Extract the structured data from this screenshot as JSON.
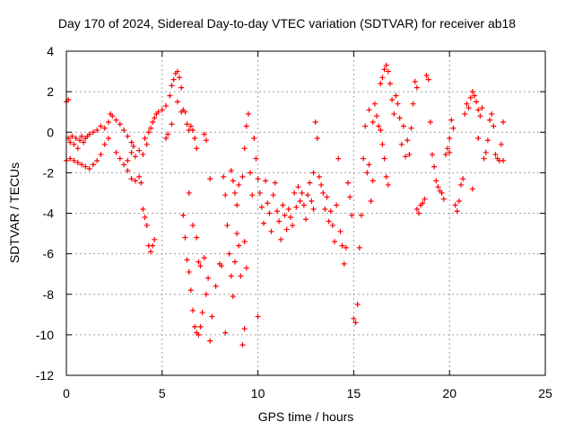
{
  "chart_data": {
    "type": "scatter",
    "title": "Day 170 of 2024, Sidereal Day-to-day VTEC variation (SDTVAR) for receiver ab18",
    "xlabel": "GPS time / hours",
    "ylabel": "SDTVAR / TECUs",
    "xlim": [
      0,
      25
    ],
    "ylim": [
      -12,
      4
    ],
    "xticks": [
      0,
      5,
      10,
      15,
      20,
      25
    ],
    "yticks": [
      -12,
      -10,
      -8,
      -6,
      -4,
      -2,
      0,
      2,
      4
    ],
    "grid": true,
    "marker": "+",
    "color": "#ff0000",
    "series": [
      {
        "name": "SDTVAR",
        "points": [
          [
            0.0,
            1.5
          ],
          [
            0.1,
            1.6
          ],
          [
            0.1,
            -0.3
          ],
          [
            0.2,
            -0.5
          ],
          [
            0.3,
            -0.2
          ],
          [
            0.4,
            -0.6
          ],
          [
            0.5,
            -0.3
          ],
          [
            0.6,
            -0.8
          ],
          [
            0.7,
            -0.4
          ],
          [
            0.8,
            -0.2
          ],
          [
            0.9,
            -0.5
          ],
          [
            1.0,
            -0.3
          ],
          [
            1.1,
            -0.2
          ],
          [
            0.0,
            -1.4
          ],
          [
            0.2,
            -1.3
          ],
          [
            0.4,
            -1.4
          ],
          [
            0.6,
            -1.5
          ],
          [
            0.8,
            -1.6
          ],
          [
            1.0,
            -1.7
          ],
          [
            1.2,
            -1.8
          ],
          [
            1.4,
            -1.6
          ],
          [
            1.6,
            -1.4
          ],
          [
            1.8,
            -1.1
          ],
          [
            2.0,
            -0.6
          ],
          [
            2.2,
            -0.3
          ],
          [
            1.2,
            -0.1
          ],
          [
            1.4,
            0.0
          ],
          [
            1.6,
            0.1
          ],
          [
            1.8,
            0.3
          ],
          [
            2.0,
            0.2
          ],
          [
            2.2,
            0.5
          ],
          [
            2.3,
            0.9
          ],
          [
            2.4,
            0.8
          ],
          [
            2.6,
            0.6
          ],
          [
            2.8,
            0.4
          ],
          [
            3.0,
            0.1
          ],
          [
            3.2,
            -0.2
          ],
          [
            3.4,
            -0.5
          ],
          [
            3.5,
            -0.7
          ],
          [
            2.6,
            -1.0
          ],
          [
            2.8,
            -1.3
          ],
          [
            3.0,
            -1.6
          ],
          [
            3.2,
            -1.4
          ],
          [
            3.4,
            -1.0
          ],
          [
            3.6,
            -1.2
          ],
          [
            3.8,
            -0.9
          ],
          [
            4.0,
            -1.1
          ],
          [
            4.1,
            -0.3
          ],
          [
            4.2,
            -0.6
          ],
          [
            3.2,
            -1.9
          ],
          [
            3.4,
            -2.3
          ],
          [
            3.6,
            -2.4
          ],
          [
            3.8,
            -2.2
          ],
          [
            3.9,
            -2.5
          ],
          [
            4.0,
            -3.8
          ],
          [
            4.2,
            -4.6
          ],
          [
            4.3,
            -5.6
          ],
          [
            4.4,
            -5.9
          ],
          [
            4.5,
            -5.6
          ],
          [
            4.6,
            -5.3
          ],
          [
            4.1,
            -4.2
          ],
          [
            4.3,
            0.0
          ],
          [
            4.4,
            0.2
          ],
          [
            4.5,
            0.5
          ],
          [
            4.6,
            0.7
          ],
          [
            4.7,
            0.9
          ],
          [
            4.8,
            1.0
          ],
          [
            5.0,
            1.1
          ],
          [
            5.2,
            1.3
          ],
          [
            5.4,
            1.8
          ],
          [
            5.5,
            2.3
          ],
          [
            5.6,
            2.6
          ],
          [
            5.7,
            2.9
          ],
          [
            5.8,
            3.0
          ],
          [
            5.9,
            2.7
          ],
          [
            6.0,
            2.2
          ],
          [
            5.2,
            -0.3
          ],
          [
            5.3,
            -0.1
          ],
          [
            5.5,
            0.4
          ],
          [
            5.8,
            1.5
          ],
          [
            6.0,
            1.0
          ],
          [
            6.1,
            1.1
          ],
          [
            6.2,
            1.0
          ],
          [
            6.3,
            0.4
          ],
          [
            6.4,
            0.1
          ],
          [
            6.5,
            0.3
          ],
          [
            6.6,
            0.1
          ],
          [
            6.7,
            -0.3
          ],
          [
            6.8,
            -0.8
          ],
          [
            6.1,
            -4.1
          ],
          [
            6.2,
            -5.2
          ],
          [
            6.3,
            -6.3
          ],
          [
            6.4,
            -6.9
          ],
          [
            6.5,
            -7.8
          ],
          [
            6.6,
            -8.8
          ],
          [
            6.7,
            -9.6
          ],
          [
            6.8,
            -9.9
          ],
          [
            6.9,
            -10.0
          ],
          [
            7.0,
            -9.6
          ],
          [
            7.1,
            -8.9
          ],
          [
            6.4,
            -3.0
          ],
          [
            6.6,
            -4.6
          ],
          [
            6.8,
            -5.2
          ],
          [
            6.9,
            -6.4
          ],
          [
            7.0,
            -6.6
          ],
          [
            7.2,
            -6.2
          ],
          [
            7.4,
            -7.2
          ],
          [
            7.3,
            -8.0
          ],
          [
            7.2,
            -0.1
          ],
          [
            7.3,
            -0.4
          ],
          [
            7.5,
            -2.3
          ],
          [
            7.5,
            -10.3
          ],
          [
            7.6,
            -9.1
          ],
          [
            7.8,
            -7.6
          ],
          [
            8.0,
            -6.5
          ],
          [
            8.1,
            -6.6
          ],
          [
            8.3,
            -9.9
          ],
          [
            8.2,
            -2.2
          ],
          [
            8.3,
            -3.1
          ],
          [
            8.4,
            -4.6
          ],
          [
            8.5,
            -6.0
          ],
          [
            8.6,
            -7.1
          ],
          [
            8.7,
            -8.1
          ],
          [
            8.8,
            -6.4
          ],
          [
            8.9,
            -5.0
          ],
          [
            9.0,
            -5.6
          ],
          [
            9.1,
            -7.1
          ],
          [
            9.2,
            -10.5
          ],
          [
            9.3,
            -9.7
          ],
          [
            8.6,
            -1.9
          ],
          [
            8.7,
            -2.4
          ],
          [
            8.8,
            -3.0
          ],
          [
            8.9,
            -3.6
          ],
          [
            9.0,
            -2.6
          ],
          [
            9.2,
            -2.2
          ],
          [
            9.3,
            -0.8
          ],
          [
            9.4,
            0.3
          ],
          [
            9.5,
            0.9
          ],
          [
            9.3,
            -5.4
          ],
          [
            9.4,
            -6.7
          ],
          [
            9.6,
            -2.0
          ],
          [
            9.7,
            -3.1
          ],
          [
            9.8,
            -0.3
          ],
          [
            9.9,
            -1.3
          ],
          [
            10.0,
            -2.3
          ],
          [
            10.1,
            -3.0
          ],
          [
            10.0,
            -9.1
          ],
          [
            10.2,
            -3.7
          ],
          [
            10.3,
            -4.5
          ],
          [
            10.4,
            -2.4
          ],
          [
            10.5,
            -3.5
          ],
          [
            10.6,
            -4.0
          ],
          [
            10.7,
            -4.9
          ],
          [
            10.8,
            -3.1
          ],
          [
            10.9,
            -2.5
          ],
          [
            11.0,
            -3.9
          ],
          [
            11.1,
            -4.4
          ],
          [
            11.2,
            -5.3
          ],
          [
            11.3,
            -3.6
          ],
          [
            11.4,
            -4.1
          ],
          [
            11.5,
            -4.8
          ],
          [
            11.6,
            -3.8
          ],
          [
            11.7,
            -4.2
          ],
          [
            11.8,
            -4.6
          ],
          [
            11.9,
            -3.0
          ],
          [
            12.0,
            -3.7
          ],
          [
            12.1,
            -2.7
          ],
          [
            12.2,
            -3.4
          ],
          [
            12.3,
            -3.0
          ],
          [
            12.4,
            -3.6
          ],
          [
            12.5,
            -4.3
          ],
          [
            12.6,
            -3.1
          ],
          [
            12.7,
            -2.5
          ],
          [
            12.8,
            -3.4
          ],
          [
            12.9,
            -2.0
          ],
          [
            12.9,
            -3.8
          ],
          [
            13.0,
            0.5
          ],
          [
            13.1,
            -0.3
          ],
          [
            13.2,
            -2.2
          ],
          [
            13.3,
            -2.6
          ],
          [
            13.4,
            -3.0
          ],
          [
            13.5,
            -3.8
          ],
          [
            13.6,
            -3.2
          ],
          [
            13.7,
            -4.4
          ],
          [
            13.8,
            -3.9
          ],
          [
            13.9,
            -4.6
          ],
          [
            14.0,
            -5.4
          ],
          [
            14.1,
            -3.6
          ],
          [
            14.2,
            -1.3
          ],
          [
            14.3,
            -4.9
          ],
          [
            14.4,
            -5.6
          ],
          [
            14.5,
            -6.5
          ],
          [
            14.6,
            -5.7
          ],
          [
            14.7,
            -2.5
          ],
          [
            14.8,
            -3.2
          ],
          [
            14.9,
            -4.1
          ],
          [
            15.0,
            -9.2
          ],
          [
            15.1,
            -9.4
          ],
          [
            15.2,
            -8.5
          ],
          [
            15.3,
            -5.7
          ],
          [
            15.4,
            -4.1
          ],
          [
            15.5,
            -1.3
          ],
          [
            15.6,
            0.3
          ],
          [
            15.7,
            -2.0
          ],
          [
            15.8,
            -1.6
          ],
          [
            15.9,
            -3.4
          ],
          [
            16.0,
            -2.4
          ],
          [
            15.8,
            1.1
          ],
          [
            16.0,
            0.5
          ],
          [
            16.1,
            1.4
          ],
          [
            16.2,
            0.8
          ],
          [
            16.3,
            0.3
          ],
          [
            16.4,
            0.1
          ],
          [
            16.5,
            -0.6
          ],
          [
            16.6,
            -1.3
          ],
          [
            16.7,
            -2.2
          ],
          [
            16.8,
            -2.6
          ],
          [
            16.4,
            2.4
          ],
          [
            16.5,
            2.7
          ],
          [
            16.6,
            3.1
          ],
          [
            16.7,
            3.3
          ],
          [
            16.8,
            3.0
          ],
          [
            16.9,
            2.4
          ],
          [
            17.0,
            1.6
          ],
          [
            17.1,
            0.9
          ],
          [
            17.2,
            1.8
          ],
          [
            17.3,
            1.4
          ],
          [
            17.4,
            0.7
          ],
          [
            17.5,
            -0.6
          ],
          [
            17.6,
            0.3
          ],
          [
            17.7,
            -1.2
          ],
          [
            17.8,
            -0.4
          ],
          [
            17.9,
            -1.1
          ],
          [
            18.0,
            0.2
          ],
          [
            18.1,
            1.4
          ],
          [
            18.2,
            2.5
          ],
          [
            18.3,
            2.2
          ],
          [
            18.3,
            -3.8
          ],
          [
            18.4,
            -4.0
          ],
          [
            18.5,
            -3.6
          ],
          [
            18.6,
            -3.5
          ],
          [
            18.7,
            -3.3
          ],
          [
            18.8,
            2.8
          ],
          [
            18.9,
            2.6
          ],
          [
            19.0,
            0.5
          ],
          [
            19.1,
            -1.1
          ],
          [
            19.2,
            -1.7
          ],
          [
            19.3,
            -2.4
          ],
          [
            19.4,
            -2.7
          ],
          [
            19.5,
            -2.9
          ],
          [
            19.6,
            -3.0
          ],
          [
            19.7,
            -3.3
          ],
          [
            19.8,
            -1.1
          ],
          [
            19.9,
            -0.8
          ],
          [
            20.0,
            -0.3
          ],
          [
            20.1,
            0.6
          ],
          [
            20.2,
            0.2
          ],
          [
            20.3,
            -3.6
          ],
          [
            20.4,
            -3.9
          ],
          [
            20.5,
            -3.4
          ],
          [
            20.6,
            -2.6
          ],
          [
            20.7,
            -2.3
          ],
          [
            20.8,
            0.9
          ],
          [
            20.9,
            1.4
          ],
          [
            21.0,
            1.2
          ],
          [
            21.1,
            1.7
          ],
          [
            21.2,
            2.0
          ],
          [
            21.3,
            1.8
          ],
          [
            21.4,
            1.5
          ],
          [
            21.5,
            1.1
          ],
          [
            21.6,
            0.8
          ],
          [
            21.7,
            1.2
          ],
          [
            21.8,
            -1.3
          ],
          [
            21.9,
            -1.0
          ],
          [
            22.0,
            -0.4
          ],
          [
            22.1,
            0.6
          ],
          [
            22.2,
            0.9
          ],
          [
            22.3,
            0.3
          ],
          [
            22.4,
            -1.1
          ],
          [
            22.5,
            -1.3
          ],
          [
            22.6,
            -1.4
          ],
          [
            22.7,
            -0.6
          ],
          [
            22.8,
            0.5
          ],
          [
            22.8,
            -1.4
          ],
          [
            21.2,
            -2.8
          ],
          [
            21.5,
            -0.3
          ],
          [
            20.0,
            -1.0
          ]
        ]
      }
    ]
  }
}
